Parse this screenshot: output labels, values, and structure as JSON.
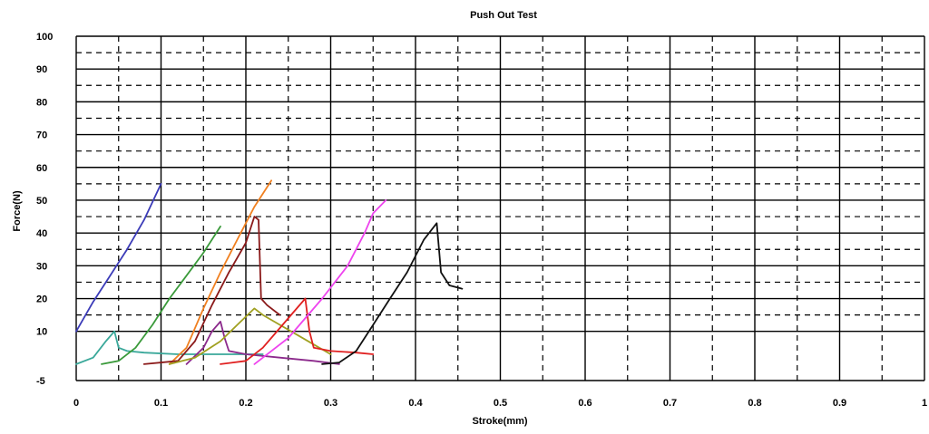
{
  "chart_data": {
    "type": "line",
    "title": "Push Out Test",
    "xlabel": "Stroke(mm)",
    "ylabel": "Force(N)",
    "xlim": [
      0,
      1
    ],
    "ylim": [
      -5,
      100
    ],
    "x_ticks": [
      "0",
      "0.1",
      "0.2",
      "0.3",
      "0.4",
      "0.5",
      "0.6",
      "0.7",
      "0.8",
      "0.9",
      "1"
    ],
    "y_ticks": [
      {
        "value": -5,
        "label": "-5"
      },
      {
        "value": 10,
        "label": "10"
      },
      {
        "value": 20,
        "label": "20"
      },
      {
        "value": 30,
        "label": "30"
      },
      {
        "value": 40,
        "label": "40"
      },
      {
        "value": 50,
        "label": "50"
      },
      {
        "value": 60,
        "label": "60"
      },
      {
        "value": 70,
        "label": "70"
      },
      {
        "value": 80,
        "label": "80"
      },
      {
        "value": 90,
        "label": "90"
      },
      {
        "value": 100,
        "label": "100"
      }
    ],
    "grid": true,
    "series": [
      {
        "color": "#3b3bb8",
        "points": [
          [
            0.0,
            10
          ],
          [
            0.02,
            19
          ],
          [
            0.04,
            27
          ],
          [
            0.06,
            35
          ],
          [
            0.08,
            44
          ],
          [
            0.1,
            55
          ]
        ]
      },
      {
        "color": "#3aa89a",
        "points": [
          [
            0.0,
            0
          ],
          [
            0.02,
            2
          ],
          [
            0.035,
            7
          ],
          [
            0.045,
            10
          ],
          [
            0.05,
            5
          ],
          [
            0.06,
            4
          ],
          [
            0.08,
            3.5
          ],
          [
            0.12,
            3
          ],
          [
            0.18,
            3
          ],
          [
            0.22,
            3
          ]
        ]
      },
      {
        "color": "#3a9a3a",
        "points": [
          [
            0.03,
            0
          ],
          [
            0.05,
            1
          ],
          [
            0.07,
            5
          ],
          [
            0.09,
            12
          ],
          [
            0.11,
            20
          ],
          [
            0.13,
            27
          ],
          [
            0.15,
            34
          ],
          [
            0.17,
            42
          ]
        ]
      },
      {
        "color": "#f08020",
        "points": [
          [
            0.11,
            0
          ],
          [
            0.13,
            5
          ],
          [
            0.15,
            17
          ],
          [
            0.17,
            28
          ],
          [
            0.19,
            38
          ],
          [
            0.21,
            48
          ],
          [
            0.23,
            56
          ]
        ]
      },
      {
        "color": "#8b1a1a",
        "points": [
          [
            0.08,
            0
          ],
          [
            0.12,
            1
          ],
          [
            0.14,
            7
          ],
          [
            0.16,
            18
          ],
          [
            0.18,
            28
          ],
          [
            0.2,
            37
          ],
          [
            0.21,
            45
          ],
          [
            0.215,
            44
          ],
          [
            0.218,
            20
          ],
          [
            0.225,
            18
          ],
          [
            0.24,
            15
          ]
        ]
      },
      {
        "color": "#8c2a8c",
        "points": [
          [
            0.13,
            0
          ],
          [
            0.15,
            5
          ],
          [
            0.16,
            10
          ],
          [
            0.17,
            13
          ],
          [
            0.175,
            8
          ],
          [
            0.18,
            4
          ],
          [
            0.2,
            3
          ],
          [
            0.24,
            2
          ],
          [
            0.28,
            1
          ],
          [
            0.31,
            0
          ]
        ]
      },
      {
        "color": "#a0a020",
        "points": [
          [
            0.11,
            0
          ],
          [
            0.14,
            2
          ],
          [
            0.17,
            7
          ],
          [
            0.19,
            12
          ],
          [
            0.21,
            17
          ],
          [
            0.22,
            15
          ],
          [
            0.24,
            12
          ],
          [
            0.26,
            9
          ],
          [
            0.28,
            6
          ],
          [
            0.3,
            3
          ]
        ]
      },
      {
        "color": "#e02020",
        "points": [
          [
            0.17,
            0
          ],
          [
            0.2,
            1
          ],
          [
            0.22,
            5
          ],
          [
            0.24,
            11
          ],
          [
            0.26,
            17
          ],
          [
            0.27,
            20
          ],
          [
            0.275,
            10
          ],
          [
            0.28,
            5
          ],
          [
            0.3,
            4
          ],
          [
            0.33,
            3.5
          ],
          [
            0.35,
            3
          ]
        ]
      },
      {
        "color": "#ee44ee",
        "points": [
          [
            0.21,
            0
          ],
          [
            0.25,
            8
          ],
          [
            0.29,
            20
          ],
          [
            0.32,
            30
          ],
          [
            0.34,
            40
          ],
          [
            0.35,
            46
          ],
          [
            0.365,
            50
          ]
        ]
      },
      {
        "color": "#111111",
        "points": [
          [
            0.29,
            0
          ],
          [
            0.31,
            0.5
          ],
          [
            0.33,
            4
          ],
          [
            0.35,
            12
          ],
          [
            0.37,
            20
          ],
          [
            0.39,
            28
          ],
          [
            0.41,
            38
          ],
          [
            0.425,
            43
          ],
          [
            0.43,
            28
          ],
          [
            0.44,
            24
          ],
          [
            0.455,
            23
          ]
        ]
      }
    ]
  }
}
